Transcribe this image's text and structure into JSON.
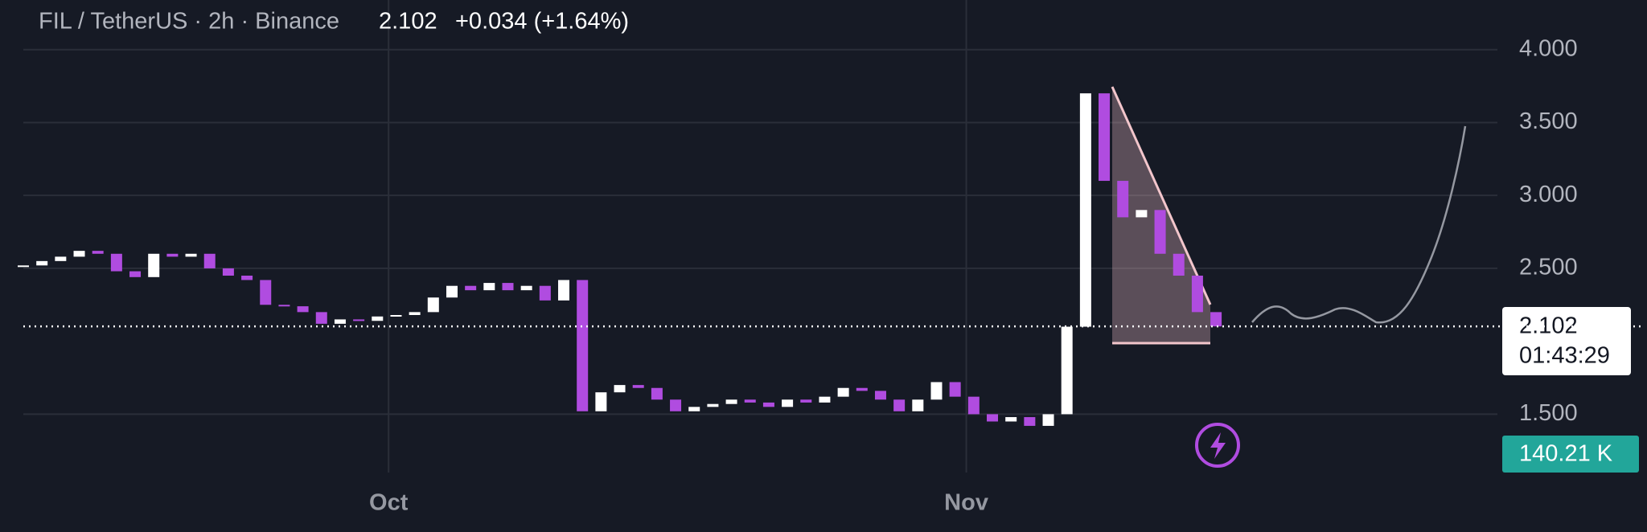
{
  "chart_data": {
    "type": "candlestick",
    "title": "FIL / TetherUS · 2h · Binance",
    "price_text": "2.102",
    "change_text": "+0.034 (+1.64%)",
    "last_price": 2.102,
    "countdown": "01:43:29",
    "volume_label": "140.21 K",
    "up_color": "#ffffff",
    "down_color": "#b04ce0",
    "x": [
      0,
      1,
      2,
      3,
      4,
      5,
      6,
      7,
      8,
      9,
      10,
      11,
      12,
      13,
      14,
      15,
      16,
      17,
      18,
      19,
      20,
      21,
      22,
      23,
      24,
      25,
      26,
      27,
      28,
      29,
      30,
      31,
      32,
      33,
      34,
      35,
      36,
      37,
      38,
      39,
      40,
      41,
      42,
      43,
      44,
      45,
      46,
      47,
      48,
      49,
      50,
      51,
      52,
      53,
      54,
      55,
      56,
      57,
      58,
      59,
      60,
      61,
      62,
      63,
      64
    ],
    "values": [
      2.52,
      2.55,
      2.58,
      2.62,
      2.6,
      2.48,
      2.44,
      2.6,
      2.58,
      2.6,
      2.5,
      2.45,
      2.42,
      2.25,
      2.24,
      2.2,
      2.12,
      2.15,
      2.14,
      2.17,
      2.18,
      2.2,
      2.3,
      2.38,
      2.35,
      2.4,
      2.35,
      2.38,
      2.28,
      2.42,
      1.52,
      1.65,
      1.7,
      1.68,
      1.6,
      1.52,
      1.55,
      1.57,
      1.6,
      1.58,
      1.55,
      1.6,
      1.58,
      1.62,
      1.68,
      1.66,
      1.6,
      1.52,
      1.6,
      1.72,
      1.62,
      1.5,
      1.45,
      1.48,
      1.42,
      1.5,
      2.1,
      3.7,
      3.1,
      2.85,
      2.9,
      2.6,
      2.45,
      2.2,
      2.102
    ],
    "xlim": [
      0,
      79.1
    ],
    "xticks": [
      {
        "value": 19.6,
        "label": "Oct"
      },
      {
        "value": 50.6,
        "label": "Nov"
      }
    ],
    "ylim": [
      1.1,
      4.34
    ],
    "yticks": [
      {
        "value": 1.5,
        "label": "1.500"
      },
      {
        "value": 2.5,
        "label": "2.500"
      },
      {
        "value": 3,
        "label": "3.000"
      },
      {
        "value": 3.5,
        "label": "3.500"
      },
      {
        "value": 4,
        "label": "4.000"
      }
    ],
    "grid": true
  }
}
